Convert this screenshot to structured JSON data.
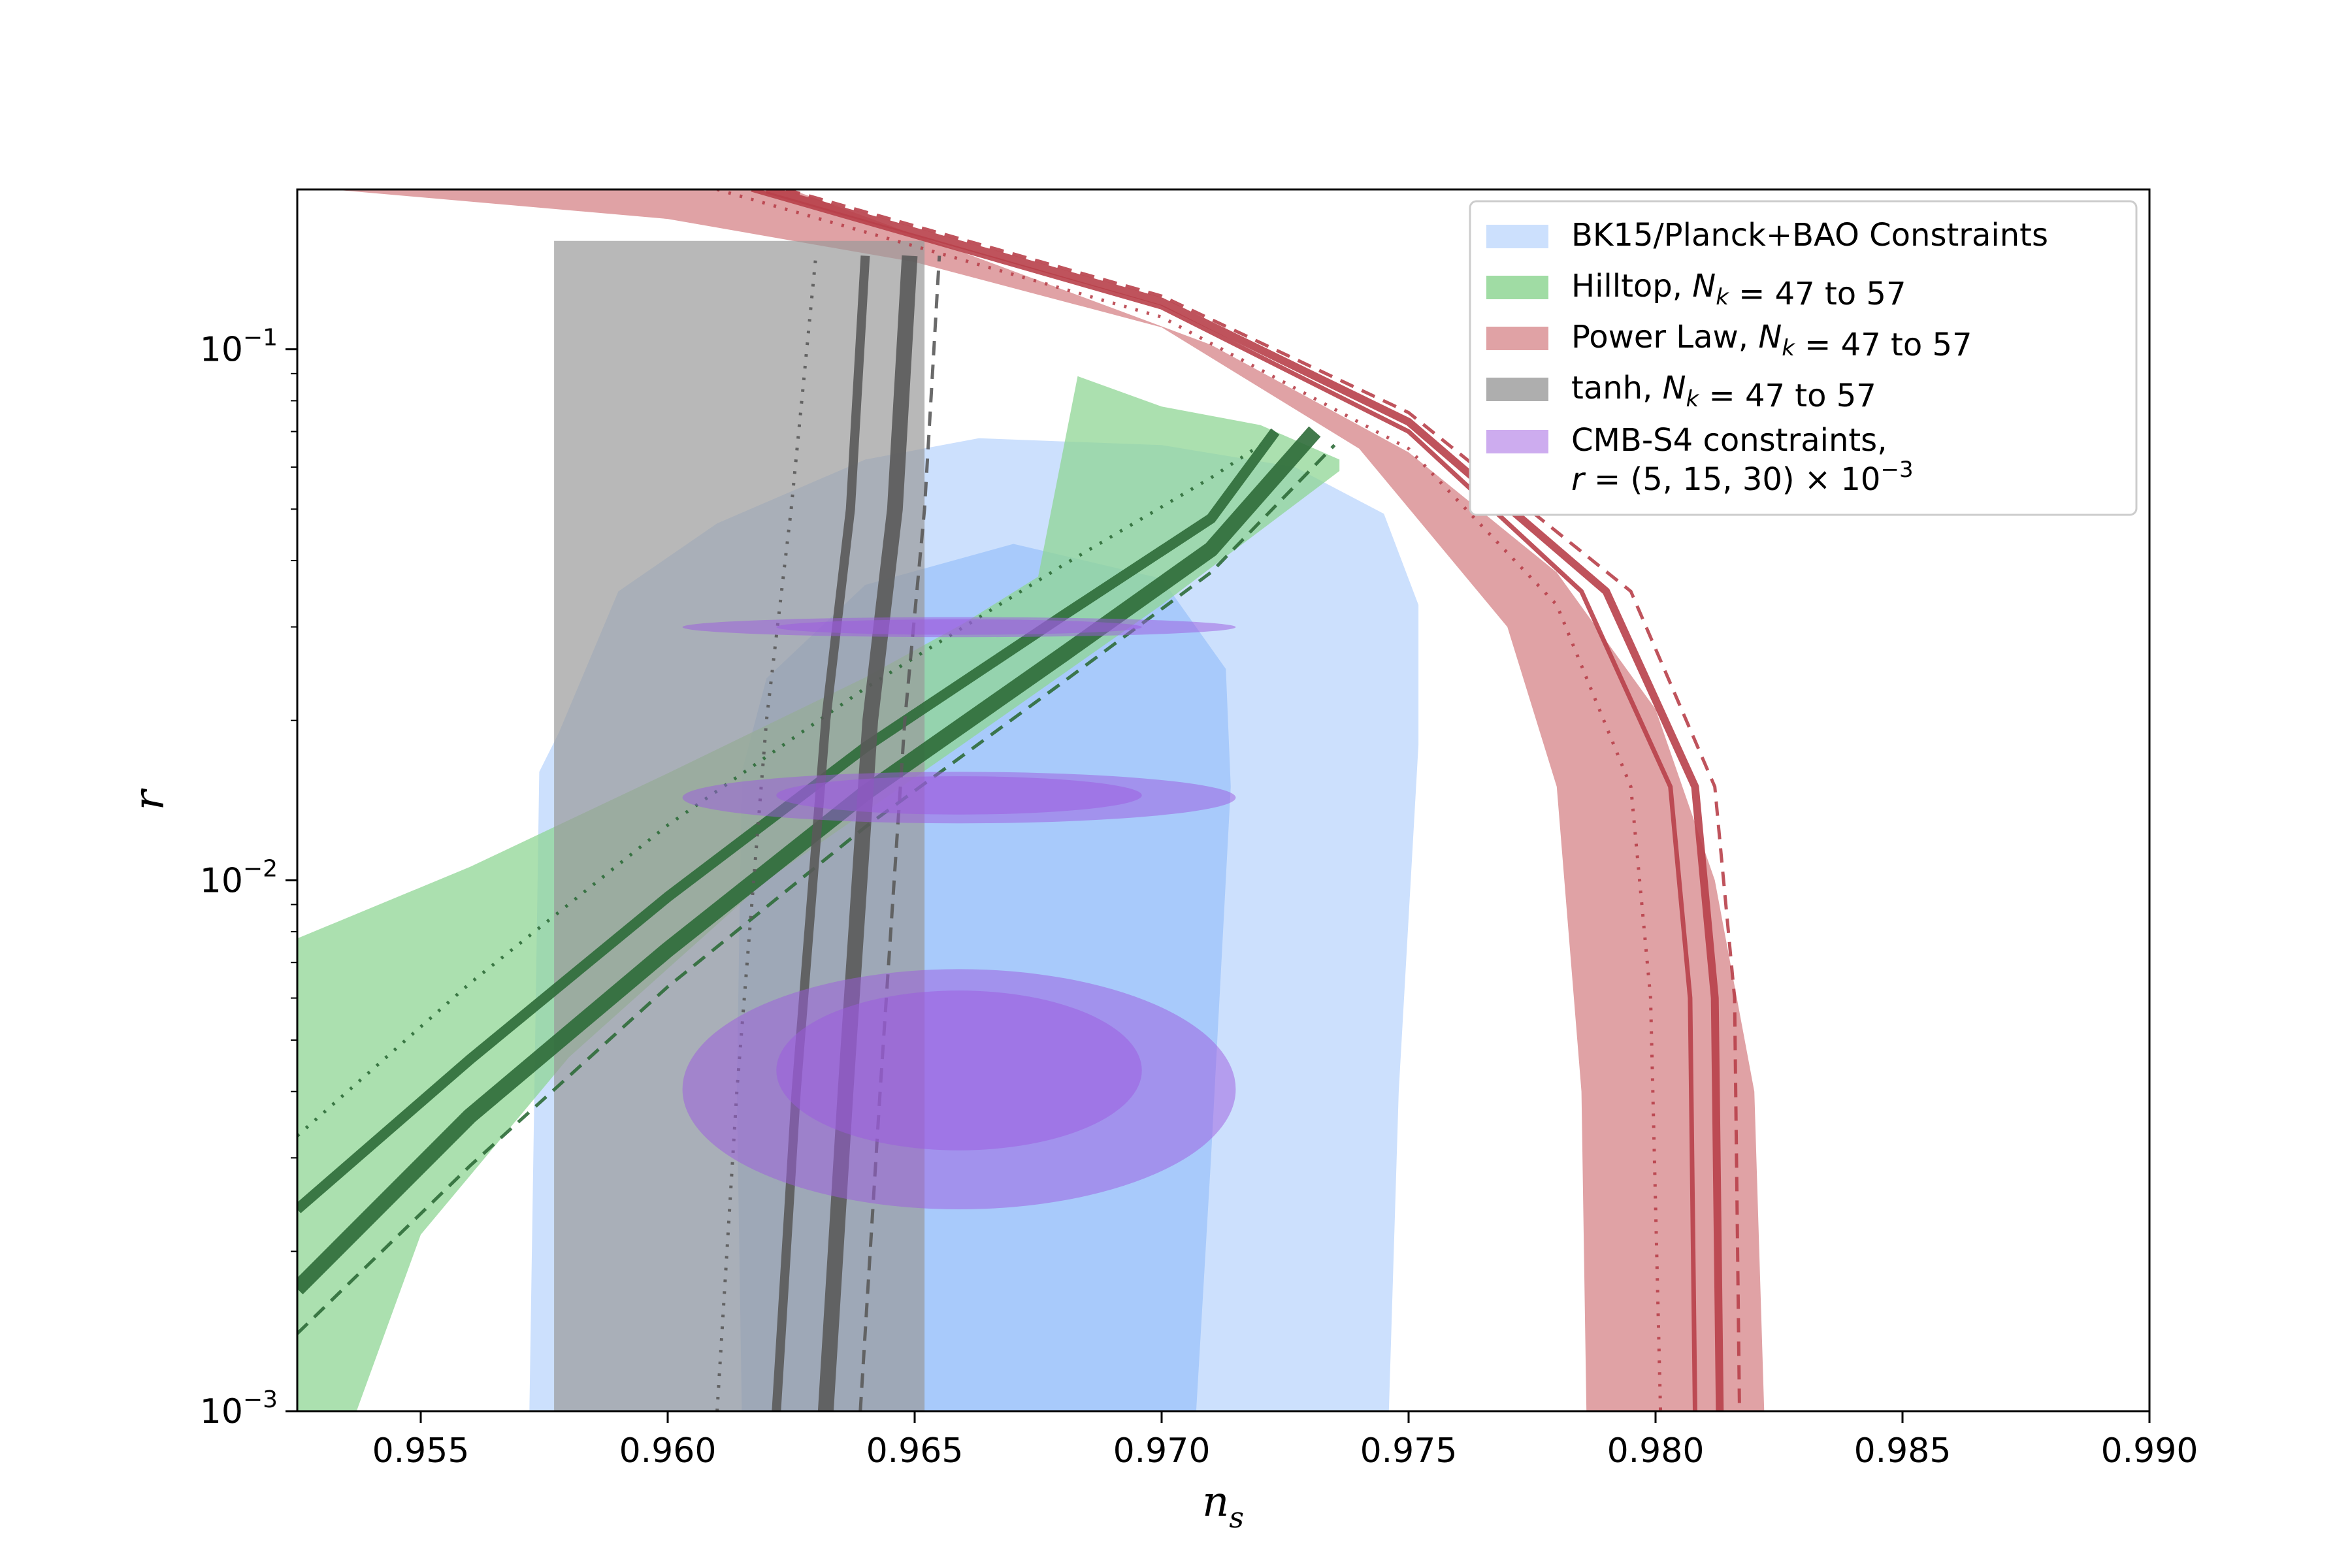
{
  "chart_data": {
    "type": "line",
    "xlabel": "n_s",
    "ylabel": "r",
    "xlim": [
      0.9525,
      0.99
    ],
    "ylim": [
      0.001,
      0.2
    ],
    "yscale": "log",
    "grid": false,
    "legend_position": "top-right",
    "x_ticks": [
      0.955,
      0.96,
      0.965,
      0.97,
      0.975,
      0.98,
      0.985,
      0.99
    ],
    "x_tick_labels": [
      "0.955",
      "0.960",
      "0.965",
      "0.970",
      "0.975",
      "0.980",
      "0.985",
      "0.990"
    ],
    "y_ticks": [
      0.001,
      0.01,
      0.1
    ],
    "y_tick_labels": [
      {
        "base": "10",
        "exp": "−3"
      },
      {
        "base": "10",
        "exp": "−2"
      },
      {
        "base": "10",
        "exp": "−1"
      }
    ],
    "legend": [
      {
        "key": "bk15",
        "parts": [
          {
            "t": "BK15/Planck+BAO Constraints"
          }
        ]
      },
      {
        "key": "hilltop",
        "parts": [
          {
            "t": "Hilltop, "
          },
          {
            "t": "N",
            "it": true
          },
          {
            "t": "k",
            "it": true,
            "sub": true
          },
          {
            "t": " = 47 to 57"
          }
        ]
      },
      {
        "key": "powerlaw",
        "parts": [
          {
            "t": "Power Law, "
          },
          {
            "t": "N",
            "it": true
          },
          {
            "t": "k",
            "it": true,
            "sub": true
          },
          {
            "t": " = 47 to 57"
          }
        ]
      },
      {
        "key": "tanh",
        "parts": [
          {
            "t": "tanh, "
          },
          {
            "t": "N",
            "it": true
          },
          {
            "t": "k",
            "it": true,
            "sub": true
          },
          {
            "t": " = 47 to 57"
          }
        ]
      },
      {
        "key": "cmbs4",
        "parts": [
          {
            "t": "CMB-S4 constraints,"
          }
        ],
        "parts2": [
          {
            "t": "r",
            "it": true
          },
          {
            "t": " = (5, 15, 30) × 10"
          },
          {
            "t": "−3",
            "sup": true
          }
        ]
      }
    ],
    "colors": {
      "bk15_outer": "#cce0fd",
      "bk15_inner": "#a8cafb",
      "hilltop_band": "#8fd694",
      "hilltop_line": "#2e6b38",
      "powerlaw_band": "#dd9a9d",
      "powerlaw_line": "#b8404a",
      "tanh_band": "#9a9a9a",
      "tanh_line": "#5a5a5a",
      "cmbs4": "#9b59e0"
    },
    "bk15_outer": [
      [
        0.9572,
        0.001
      ],
      [
        0.9573,
        0.004
      ],
      [
        0.9574,
        0.016
      ],
      [
        0.9578,
        0.019
      ],
      [
        0.959,
        0.035
      ],
      [
        0.961,
        0.047
      ],
      [
        0.964,
        0.062
      ],
      [
        0.9663,
        0.068
      ],
      [
        0.97,
        0.066
      ],
      [
        0.9727,
        0.06
      ],
      [
        0.9745,
        0.049
      ],
      [
        0.9752,
        0.033
      ],
      [
        0.9752,
        0.018
      ],
      [
        0.9748,
        0.004
      ],
      [
        0.9746,
        0.001
      ]
    ],
    "bk15_inner": [
      [
        0.9615,
        0.001
      ],
      [
        0.9614,
        0.004
      ],
      [
        0.9615,
        0.016
      ],
      [
        0.962,
        0.024
      ],
      [
        0.964,
        0.036
      ],
      [
        0.967,
        0.043
      ],
      [
        0.97,
        0.037
      ],
      [
        0.9713,
        0.025
      ],
      [
        0.9714,
        0.015
      ],
      [
        0.971,
        0.003
      ],
      [
        0.9707,
        0.001
      ]
    ],
    "hilltop_band": [
      [
        0.9525,
        0.00777
      ],
      [
        0.956,
        0.0106
      ],
      [
        0.96,
        0.0159
      ],
      [
        0.964,
        0.0241
      ],
      [
        0.966,
        0.0305
      ],
      [
        0.9675,
        0.0373
      ],
      [
        0.9683,
        0.089
      ],
      [
        0.97,
        0.078
      ],
      [
        0.972,
        0.072
      ],
      [
        0.9736,
        0.062
      ],
      [
        0.9736,
        0.059
      ],
      [
        0.97,
        0.033
      ],
      [
        0.966,
        0.0181
      ],
      [
        0.962,
        0.01
      ],
      [
        0.958,
        0.00464
      ],
      [
        0.955,
        0.00215
      ],
      [
        0.9537,
        0.001
      ],
      [
        0.9525,
        0.001
      ]
    ],
    "hilltop_lines": [
      {
        "style": "dotted",
        "points": [
          [
            0.9525,
            0.0033
          ],
          [
            0.956,
            0.0064
          ],
          [
            0.96,
            0.0127
          ],
          [
            0.964,
            0.023
          ],
          [
            0.968,
            0.0392
          ],
          [
            0.971,
            0.0573
          ],
          [
            0.972,
            0.066
          ]
        ]
      },
      {
        "style": "solid",
        "width": 16,
        "points": [
          [
            0.9525,
            0.0024
          ],
          [
            0.956,
            0.0046
          ],
          [
            0.96,
            0.0093
          ],
          [
            0.964,
            0.0178
          ],
          [
            0.968,
            0.0315
          ],
          [
            0.971,
            0.048
          ],
          [
            0.9723,
            0.07
          ]
        ]
      },
      {
        "style": "solid",
        "width": 24,
        "points": [
          [
            0.9525,
            0.0017
          ],
          [
            0.956,
            0.0036
          ],
          [
            0.96,
            0.0074
          ],
          [
            0.964,
            0.0146
          ],
          [
            0.968,
            0.0266
          ],
          [
            0.971,
            0.042
          ],
          [
            0.9731,
            0.07
          ]
        ]
      },
      {
        "style": "dashed",
        "points": [
          [
            0.9525,
            0.0014
          ],
          [
            0.956,
            0.0029
          ],
          [
            0.96,
            0.0063
          ],
          [
            0.964,
            0.0126
          ],
          [
            0.968,
            0.0236
          ],
          [
            0.971,
            0.038
          ],
          [
            0.9735,
            0.066
          ]
        ]
      }
    ],
    "powerlaw_band": [
      [
        0.9532,
        0.2
      ],
      [
        0.96,
        0.176
      ],
      [
        0.965,
        0.146
      ],
      [
        0.97,
        0.11
      ],
      [
        0.974,
        0.065
      ],
      [
        0.977,
        0.03
      ],
      [
        0.978,
        0.015
      ],
      [
        0.9785,
        0.004
      ],
      [
        0.9786,
        0.001
      ],
      [
        0.9822,
        0.001
      ],
      [
        0.982,
        0.004
      ],
      [
        0.9812,
        0.01
      ],
      [
        0.98,
        0.021
      ],
      [
        0.978,
        0.038
      ],
      [
        0.975,
        0.064
      ],
      [
        0.971,
        0.102
      ],
      [
        0.966,
        0.152
      ],
      [
        0.9625,
        0.2
      ]
    ],
    "powerlaw_lines": [
      {
        "style": "dotted",
        "points": [
          [
            0.961,
            0.2
          ],
          [
            0.97,
            0.115
          ],
          [
            0.975,
            0.065
          ],
          [
            0.978,
            0.033
          ],
          [
            0.9795,
            0.015
          ],
          [
            0.9799,
            0.006
          ],
          [
            0.9801,
            0.001
          ]
        ]
      },
      {
        "style": "solid",
        "width": 7,
        "points": [
          [
            0.9617,
            0.2
          ],
          [
            0.97,
            0.12
          ],
          [
            0.975,
            0.07
          ],
          [
            0.9785,
            0.035
          ],
          [
            0.9803,
            0.015
          ],
          [
            0.9807,
            0.006
          ],
          [
            0.9808,
            0.001
          ]
        ]
      },
      {
        "style": "solid",
        "width": 12,
        "points": [
          [
            0.962,
            0.2
          ],
          [
            0.97,
            0.123
          ],
          [
            0.975,
            0.073
          ],
          [
            0.979,
            0.035
          ],
          [
            0.9808,
            0.015
          ],
          [
            0.9812,
            0.006
          ],
          [
            0.9813,
            0.001
          ]
        ]
      },
      {
        "style": "dashed",
        "points": [
          [
            0.9624,
            0.2
          ],
          [
            0.97,
            0.126
          ],
          [
            0.975,
            0.076
          ],
          [
            0.9795,
            0.035
          ],
          [
            0.9812,
            0.015
          ],
          [
            0.9816,
            0.006
          ],
          [
            0.9817,
            0.001
          ]
        ]
      }
    ],
    "tanh_band": [
      [
        0.9577,
        0.16
      ],
      [
        0.9652,
        0.16
      ],
      [
        0.9652,
        0.001
      ],
      [
        0.9577,
        0.001
      ]
    ],
    "tanh_lines": [
      {
        "style": "dotted",
        "points": [
          [
            0.961,
            0.001
          ],
          [
            0.9614,
            0.004
          ],
          [
            0.962,
            0.02
          ],
          [
            0.9625,
            0.05
          ],
          [
            0.963,
            0.15
          ]
        ]
      },
      {
        "style": "solid",
        "width": 14,
        "points": [
          [
            0.9622,
            0.001
          ],
          [
            0.9626,
            0.004
          ],
          [
            0.9632,
            0.02
          ],
          [
            0.9637,
            0.05
          ],
          [
            0.964,
            0.15
          ]
        ]
      },
      {
        "style": "solid",
        "width": 24,
        "points": [
          [
            0.9632,
            0.001
          ],
          [
            0.9636,
            0.004
          ],
          [
            0.9641,
            0.02
          ],
          [
            0.9646,
            0.05
          ],
          [
            0.9649,
            0.15
          ]
        ]
      },
      {
        "style": "dashed",
        "points": [
          [
            0.9639,
            0.001
          ],
          [
            0.9643,
            0.004
          ],
          [
            0.9648,
            0.02
          ],
          [
            0.9652,
            0.05
          ],
          [
            0.9655,
            0.15
          ]
        ]
      }
    ],
    "cmbs4_ellipses": [
      {
        "r": 0.005,
        "outer": {
          "ns_min": 0.9603,
          "ns_max": 0.9715,
          "r_min": 0.0024,
          "r_max": 0.0068
        },
        "inner": {
          "ns_min": 0.9622,
          "ns_max": 0.9696,
          "r_min": 0.0031,
          "r_max": 0.0062
        }
      },
      {
        "r": 0.015,
        "outer": {
          "ns_min": 0.9603,
          "ns_max": 0.9715,
          "r_min": 0.0128,
          "r_max": 0.016
        },
        "inner": {
          "ns_min": 0.9622,
          "ns_max": 0.9696,
          "r_min": 0.0133,
          "r_max": 0.0157
        }
      },
      {
        "r": 0.03,
        "outer": {
          "ns_min": 0.9603,
          "ns_max": 0.9715,
          "r_min": 0.0287,
          "r_max": 0.0313
        },
        "inner": {
          "ns_min": 0.9622,
          "ns_max": 0.9696,
          "r_min": 0.029,
          "r_max": 0.031
        }
      }
    ]
  }
}
